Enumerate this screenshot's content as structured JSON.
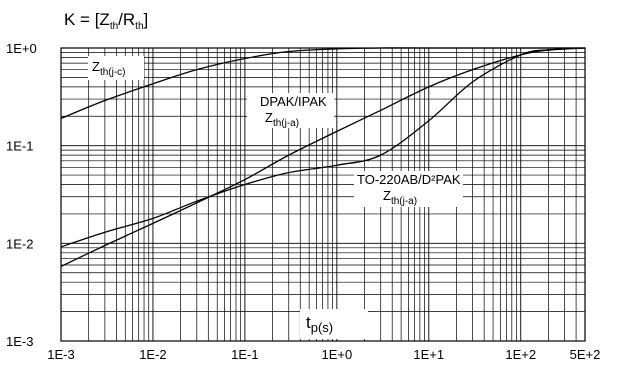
{
  "chart_data": {
    "type": "line",
    "title": "K = [Zth/Rth]",
    "xlabel": "tp(s)",
    "ylabel": "",
    "x_scale": "log",
    "y_scale": "log",
    "xlim": [
      0.001,
      500
    ],
    "ylim": [
      0.001,
      1
    ],
    "grid": true,
    "x_ticks": [
      "1E-3",
      "1E-2",
      "1E-1",
      "1E+0",
      "1E+1",
      "1E+2",
      "5E+2"
    ],
    "y_ticks": [
      "1E+0",
      "1E-1",
      "1E-2",
      "1E-3"
    ],
    "series": [
      {
        "name": "Zth(j-c)",
        "x": [
          0.001,
          0.003,
          0.01,
          0.03,
          0.1,
          0.3,
          1,
          3,
          10,
          100,
          500
        ],
        "y": [
          0.19,
          0.29,
          0.43,
          0.6,
          0.78,
          0.92,
          0.98,
          1,
          1,
          1,
          1
        ]
      },
      {
        "name": "DPAK/IPAK Zth(j-a)",
        "x": [
          0.001,
          0.003,
          0.01,
          0.03,
          0.1,
          0.3,
          1,
          3,
          10,
          30,
          100,
          200,
          500
        ],
        "y": [
          0.0058,
          0.0095,
          0.016,
          0.026,
          0.045,
          0.08,
          0.14,
          0.23,
          0.4,
          0.6,
          0.85,
          0.95,
          1
        ]
      },
      {
        "name": "TO-220AB/D²PAK Zth(j-a)",
        "x": [
          0.001,
          0.003,
          0.01,
          0.03,
          0.1,
          0.3,
          1,
          3,
          10,
          30,
          100,
          200,
          500
        ],
        "y": [
          0.0092,
          0.013,
          0.018,
          0.027,
          0.04,
          0.053,
          0.063,
          0.08,
          0.18,
          0.45,
          0.85,
          0.96,
          1
        ]
      }
    ],
    "annotations": {
      "jc": {
        "main": "Z",
        "sub": "th(j-c)"
      },
      "dpak_title": "DPAK/IPAK",
      "dpak_z": {
        "main": "Z",
        "sub": "th(j-a)"
      },
      "to220_title": "TO-220AB/D²PAK",
      "to220_z": {
        "main": "Z",
        "sub": "th(j-a)"
      },
      "tp": {
        "main": "t",
        "sub": "p(s)"
      }
    },
    "title_parts": {
      "pre": "K = [Z",
      "sub1": "th",
      "mid": "/R",
      "sub2": "th",
      "post": "]"
    }
  }
}
